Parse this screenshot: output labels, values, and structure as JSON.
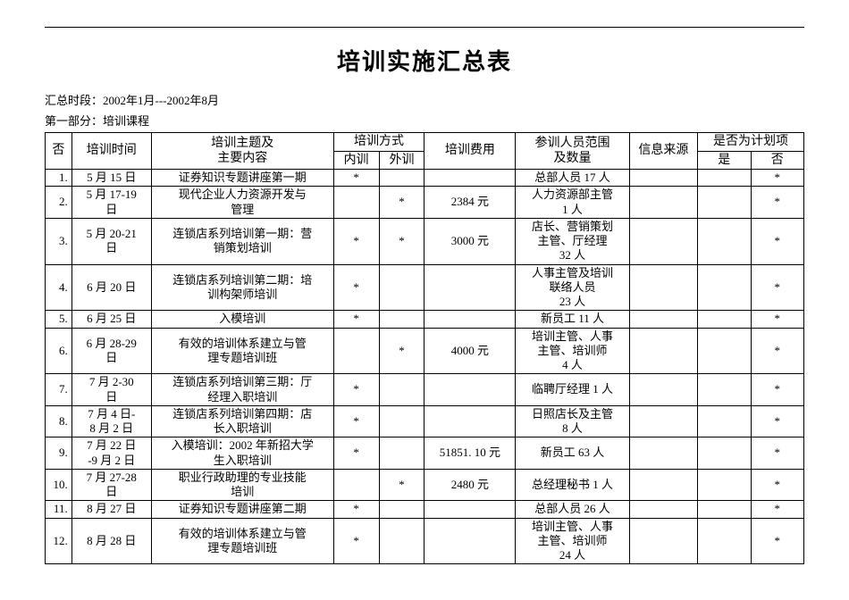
{
  "title": "培训实施汇总表",
  "period_label": "汇总时段：2002年1月---2002年8月",
  "section_label": "第一部分：培训课程",
  "headers": {
    "no": "否",
    "time": "培训时间",
    "topic": "培训主题及\n主要内容",
    "method": "培训方式",
    "internal": "内训",
    "external": "外训",
    "cost": "培训费用",
    "participants": "参训人员范围\n及数量",
    "source": "信息来源",
    "planned": "是否为计划项",
    "yes": "是"
  },
  "rows": [
    {
      "no": "1.",
      "time": "5 月 15 日",
      "topic": "证券知识专题讲座第一期",
      "internal": "*",
      "external": "",
      "cost": "",
      "participants": "总部人员 17 人",
      "source": "",
      "yes": "",
      "no2": "*"
    },
    {
      "no": "2.",
      "time": "5 月 17-19\n日",
      "topic": "现代企业人力资源开发与\n管理",
      "internal": "",
      "external": "*",
      "cost": "2384 元",
      "participants": "人力资源部主管\n1 人",
      "source": "",
      "yes": "",
      "no2": "*"
    },
    {
      "no": "3.",
      "time": "5 月 20-21\n日",
      "topic": "连锁店系列培训第一期：营\n销策划培训",
      "internal": "*",
      "external": "*",
      "cost": "3000 元",
      "participants": "店长、营销策划\n主管、厅经理\n32 人",
      "source": "",
      "yes": "",
      "no2": "*"
    },
    {
      "no": "4.",
      "time": "6 月 20 日",
      "topic": "连锁店系列培训第二期：培\n训构架师培训",
      "internal": "*",
      "external": "",
      "cost": "",
      "participants": "人事主管及培训\n联络人员\n23 人",
      "source": "",
      "yes": "",
      "no2": "*"
    },
    {
      "no": "5.",
      "time": "6 月 25 日",
      "topic": "入模培训",
      "internal": "*",
      "external": "",
      "cost": "",
      "participants": "新员工 11 人",
      "source": "",
      "yes": "",
      "no2": "*"
    },
    {
      "no": "6.",
      "time": "6 月 28-29\n日",
      "topic": "有效的培训体系建立与管\n理专题培训班",
      "internal": "",
      "external": "*",
      "cost": "4000 元",
      "participants": "培训主管、人事\n主管、培训师\n4 人",
      "source": "",
      "yes": "",
      "no2": "*"
    },
    {
      "no": "7.",
      "time": "7 月 2-30\n日",
      "topic": "连锁店系列培训第三期：厅\n经理入职培训",
      "internal": "*",
      "external": "",
      "cost": "",
      "participants": "临聘厅经理 1 人",
      "source": "",
      "yes": "",
      "no2": "*"
    },
    {
      "no": "8.",
      "time": "7 月 4 日-\n8 月 2 日",
      "topic": "连锁店系列培训第四期：店\n长入职培训",
      "internal": "*",
      "external": "",
      "cost": "",
      "participants": "日照店长及主管\n8 人",
      "source": "",
      "yes": "",
      "no2": "*"
    },
    {
      "no": "9.",
      "time": "7 月 22 日\n-9 月 2 日",
      "topic": "入模培训：2002 年新招大学\n生入职培训",
      "internal": "*",
      "external": "",
      "cost": "51851. 10 元",
      "participants": "新员工 63 人",
      "source": "",
      "yes": "",
      "no2": "*"
    },
    {
      "no": "10.",
      "time": "7 月 27-28\n日",
      "topic": "职业行政助理的专业技能\n培训",
      "internal": "",
      "external": "*",
      "cost": "2480 元",
      "participants": "总经理秘书 1 人",
      "source": "",
      "yes": "",
      "no2": "*"
    },
    {
      "no": "11.",
      "time": "8 月 27 日",
      "topic": "证券知识专题讲座第二期",
      "internal": "*",
      "external": "",
      "cost": "",
      "participants": "总部人员 26 人",
      "source": "",
      "yes": "",
      "no2": "*"
    },
    {
      "no": "12.",
      "time": "8 月 28 日",
      "topic": "有效的培训体系建立与管\n理专题培训班",
      "internal": "*",
      "external": "",
      "cost": "",
      "participants": "培训主管、人事\n主管、培训师\n24 人",
      "source": "",
      "yes": "",
      "no2": "*"
    }
  ]
}
